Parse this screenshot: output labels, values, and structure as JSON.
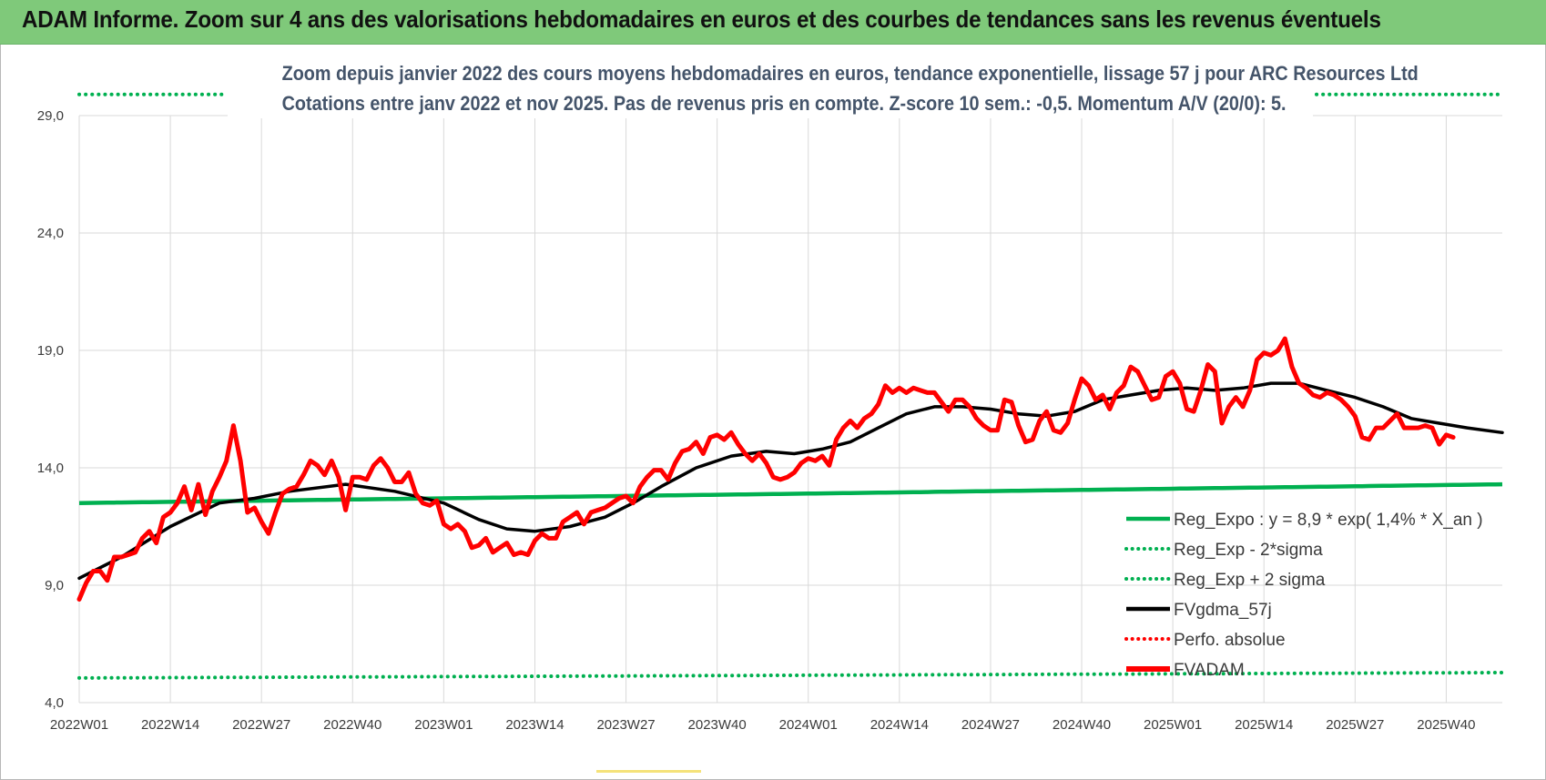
{
  "page": {
    "banner_title": "ADAM Informe. Zoom sur 4 ans des valorisations hebdomadaires en euros et des courbes de tendances sans les revenus éventuels",
    "chart_title_line1": "Zoom depuis janvier 2022 des cours moyens hebdomadaires en euros, tendance exponentielle, lissage 57 j pour ARC Resources Ltd",
    "chart_title_line2": "Cotations entre janv 2022 et nov 2025. Pas de revenus pris en compte. Z-score 10 sem.: -0,5. Momentum A/V (20/0): 5."
  },
  "colors": {
    "banner": "#7fc97a",
    "regression": "#00b050",
    "fvgdma": "#000000",
    "perfo": "#ff0000",
    "fvadam": "#ff0000",
    "grid": "#d9d9d9",
    "title": "#44546a"
  },
  "chart_data": {
    "type": "line",
    "ylim": [
      4,
      29
    ],
    "yticks": [
      "4,0",
      "9,0",
      "14,0",
      "19,0",
      "24,0",
      "29,0"
    ],
    "ytick_values": [
      4,
      9,
      14,
      19,
      24,
      29
    ],
    "xticks": [
      "2022W01",
      "2022W14",
      "2022W27",
      "2022W40",
      "2023W01",
      "2023W14",
      "2023W27",
      "2023W40",
      "2024W01",
      "2024W14",
      "2024W27",
      "2024W40",
      "2025W01",
      "2025W14",
      "2025W27",
      "2025W40"
    ],
    "x_count": 204,
    "grid": true,
    "legend_position": "bottom-right",
    "legend": [
      {
        "name": "Reg_Expo : y = 8,9 * exp( 1,4% *  X_an )",
        "style": "solid",
        "color": "#00b050"
      },
      {
        "name": "Reg_Exp - 2*sigma",
        "style": "dotted",
        "color": "#00b050"
      },
      {
        "name": "Reg_Exp + 2 sigma",
        "style": "dotted",
        "color": "#00b050"
      },
      {
        "name": "FVgdma_57j",
        "style": "solid",
        "color": "#000000"
      },
      {
        "name": "Perfo. absolue",
        "style": "dotted",
        "color": "#ff0000"
      },
      {
        "name": "FVADAM",
        "style": "solid",
        "color": "#ff0000"
      }
    ],
    "series": [
      {
        "name": "Reg_Expo : y = 8,9 * exp( 1,4% *  X_an )",
        "start": 12.5,
        "end": 13.3
      },
      {
        "name": "Reg_Exp - 2*sigma",
        "start": 5.05,
        "end": 5.28
      },
      {
        "name": "Reg_Exp + 2 sigma",
        "start": 29.9,
        "end": 29.9
      },
      {
        "name": "FVgdma_57j",
        "points": [
          [
            0,
            9.3
          ],
          [
            6,
            10.2
          ],
          [
            13,
            11.5
          ],
          [
            20,
            12.5
          ],
          [
            25,
            12.7
          ],
          [
            30,
            13
          ],
          [
            38,
            13.3
          ],
          [
            45,
            13
          ],
          [
            52,
            12.5
          ],
          [
            57,
            11.8
          ],
          [
            61,
            11.4
          ],
          [
            65,
            11.3
          ],
          [
            70,
            11.5
          ],
          [
            75,
            11.9
          ],
          [
            79,
            12.5
          ],
          [
            83,
            13.2
          ],
          [
            88,
            14
          ],
          [
            93,
            14.5
          ],
          [
            98,
            14.7
          ],
          [
            102,
            14.6
          ],
          [
            106,
            14.8
          ],
          [
            110,
            15.1
          ],
          [
            114,
            15.7
          ],
          [
            118,
            16.3
          ],
          [
            122,
            16.6
          ],
          [
            126,
            16.6
          ],
          [
            130,
            16.5
          ],
          [
            134,
            16.3
          ],
          [
            138,
            16.2
          ],
          [
            142,
            16.4
          ],
          [
            146,
            16.9
          ],
          [
            150,
            17.1
          ],
          [
            154,
            17.3
          ],
          [
            158,
            17.4
          ],
          [
            162,
            17.3
          ],
          [
            166,
            17.4
          ],
          [
            170,
            17.6
          ],
          [
            174,
            17.6
          ],
          [
            178,
            17.3
          ],
          [
            182,
            17
          ],
          [
            186,
            16.6
          ],
          [
            190,
            16.1
          ],
          [
            194,
            15.9
          ],
          [
            198,
            15.7
          ],
          [
            203,
            15.5
          ]
        ]
      },
      {
        "name": "FVADAM",
        "points": [
          [
            0,
            8.4
          ],
          [
            1,
            9.1
          ],
          [
            2,
            9.6
          ],
          [
            3,
            9.6
          ],
          [
            4,
            9.2
          ],
          [
            5,
            10.2
          ],
          [
            6,
            10.2
          ],
          [
            7,
            10.3
          ],
          [
            8,
            10.4
          ],
          [
            9,
            11
          ],
          [
            10,
            11.3
          ],
          [
            11,
            10.8
          ],
          [
            12,
            11.9
          ],
          [
            13,
            12.1
          ],
          [
            14,
            12.5
          ],
          [
            15,
            13.2
          ],
          [
            16,
            12.2
          ],
          [
            17,
            13.3
          ],
          [
            18,
            12
          ],
          [
            19,
            13
          ],
          [
            20,
            13.6
          ],
          [
            21,
            14.3
          ],
          [
            22,
            15.8
          ],
          [
            23,
            14.3
          ],
          [
            24,
            12.1
          ],
          [
            25,
            12.3
          ],
          [
            26,
            11.7
          ],
          [
            27,
            11.2
          ],
          [
            28,
            12.1
          ],
          [
            29,
            12.9
          ],
          [
            30,
            13.1
          ],
          [
            31,
            13.2
          ],
          [
            32,
            13.7
          ],
          [
            33,
            14.3
          ],
          [
            34,
            14.1
          ],
          [
            35,
            13.7
          ],
          [
            36,
            14.3
          ],
          [
            37,
            13.6
          ],
          [
            38,
            12.2
          ],
          [
            39,
            13.6
          ],
          [
            40,
            13.6
          ],
          [
            41,
            13.5
          ],
          [
            42,
            14.1
          ],
          [
            43,
            14.4
          ],
          [
            44,
            14
          ],
          [
            45,
            13.4
          ],
          [
            46,
            13.4
          ],
          [
            47,
            13.8
          ],
          [
            48,
            12.9
          ],
          [
            49,
            12.5
          ],
          [
            50,
            12.4
          ],
          [
            51,
            12.6
          ],
          [
            52,
            11.6
          ],
          [
            53,
            11.4
          ],
          [
            54,
            11.6
          ],
          [
            55,
            11.3
          ],
          [
            56,
            10.6
          ],
          [
            57,
            10.7
          ],
          [
            58,
            11
          ],
          [
            59,
            10.4
          ],
          [
            60,
            10.6
          ],
          [
            61,
            10.8
          ],
          [
            62,
            10.3
          ],
          [
            63,
            10.4
          ],
          [
            64,
            10.3
          ],
          [
            65,
            10.9
          ],
          [
            66,
            11.2
          ],
          [
            67,
            11
          ],
          [
            68,
            11
          ],
          [
            69,
            11.7
          ],
          [
            70,
            11.9
          ],
          [
            71,
            12.1
          ],
          [
            72,
            11.6
          ],
          [
            73,
            12.1
          ],
          [
            74,
            12.2
          ],
          [
            75,
            12.3
          ],
          [
            76,
            12.5
          ],
          [
            77,
            12.7
          ],
          [
            78,
            12.8
          ],
          [
            79,
            12.5
          ],
          [
            80,
            13.2
          ],
          [
            81,
            13.6
          ],
          [
            82,
            13.9
          ],
          [
            83,
            13.9
          ],
          [
            84,
            13.5
          ],
          [
            85,
            14.2
          ],
          [
            86,
            14.7
          ],
          [
            87,
            14.8
          ],
          [
            88,
            15.1
          ],
          [
            89,
            14.6
          ],
          [
            90,
            15.3
          ],
          [
            91,
            15.4
          ],
          [
            92,
            15.2
          ],
          [
            93,
            15.5
          ],
          [
            94,
            15
          ],
          [
            95,
            14.6
          ],
          [
            96,
            14.3
          ],
          [
            97,
            14.6
          ],
          [
            98,
            14.2
          ],
          [
            99,
            13.6
          ],
          [
            100,
            13.5
          ],
          [
            101,
            13.6
          ],
          [
            102,
            13.8
          ],
          [
            103,
            14.2
          ],
          [
            104,
            14.4
          ],
          [
            105,
            14.3
          ],
          [
            106,
            14.5
          ],
          [
            107,
            14.1
          ],
          [
            108,
            15.2
          ],
          [
            109,
            15.7
          ],
          [
            110,
            16
          ],
          [
            111,
            15.7
          ],
          [
            112,
            16.1
          ],
          [
            113,
            16.3
          ],
          [
            114,
            16.7
          ],
          [
            115,
            17.5
          ],
          [
            116,
            17.2
          ],
          [
            117,
            17.4
          ],
          [
            118,
            17.2
          ],
          [
            119,
            17.4
          ],
          [
            120,
            17.3
          ],
          [
            121,
            17.2
          ],
          [
            122,
            17.2
          ],
          [
            123,
            16.8
          ],
          [
            124,
            16.4
          ],
          [
            125,
            16.9
          ],
          [
            126,
            16.9
          ],
          [
            127,
            16.6
          ],
          [
            128,
            16.1
          ],
          [
            129,
            15.8
          ],
          [
            130,
            15.6
          ],
          [
            131,
            15.6
          ],
          [
            132,
            16.9
          ],
          [
            133,
            16.8
          ],
          [
            134,
            15.8
          ],
          [
            135,
            15.1
          ],
          [
            136,
            15.2
          ],
          [
            137,
            16
          ],
          [
            138,
            16.4
          ],
          [
            139,
            15.6
          ],
          [
            140,
            15.5
          ],
          [
            141,
            15.9
          ],
          [
            142,
            16.9
          ],
          [
            143,
            17.8
          ],
          [
            144,
            17.5
          ],
          [
            145,
            16.9
          ],
          [
            146,
            17.1
          ],
          [
            147,
            16.5
          ],
          [
            148,
            17.2
          ],
          [
            149,
            17.5
          ],
          [
            150,
            18.3
          ],
          [
            151,
            18.1
          ],
          [
            152,
            17.5
          ],
          [
            153,
            16.9
          ],
          [
            154,
            17
          ],
          [
            155,
            17.9
          ],
          [
            156,
            18.1
          ],
          [
            157,
            17.6
          ],
          [
            158,
            16.5
          ],
          [
            159,
            16.4
          ],
          [
            160,
            17.3
          ],
          [
            161,
            18.4
          ],
          [
            162,
            18.1
          ],
          [
            163,
            15.9
          ],
          [
            164,
            16.6
          ],
          [
            165,
            17
          ],
          [
            166,
            16.6
          ],
          [
            167,
            17.3
          ],
          [
            168,
            18.6
          ],
          [
            169,
            18.9
          ],
          [
            170,
            18.8
          ],
          [
            171,
            19
          ],
          [
            172,
            19.5
          ],
          [
            173,
            18.3
          ],
          [
            174,
            17.6
          ],
          [
            175,
            17.4
          ],
          [
            176,
            17.1
          ],
          [
            177,
            17
          ],
          [
            178,
            17.2
          ],
          [
            179,
            17.1
          ],
          [
            180,
            16.9
          ],
          [
            181,
            16.6
          ],
          [
            182,
            16.2
          ],
          [
            183,
            15.3
          ],
          [
            184,
            15.2
          ],
          [
            185,
            15.7
          ],
          [
            186,
            15.7
          ],
          [
            187,
            16
          ],
          [
            188,
            16.3
          ],
          [
            189,
            15.7
          ],
          [
            190,
            15.7
          ],
          [
            191,
            15.7
          ],
          [
            192,
            15.8
          ],
          [
            193,
            15.7
          ],
          [
            194,
            15
          ],
          [
            195,
            15.4
          ],
          [
            196,
            15.3
          ]
        ]
      }
    ]
  }
}
